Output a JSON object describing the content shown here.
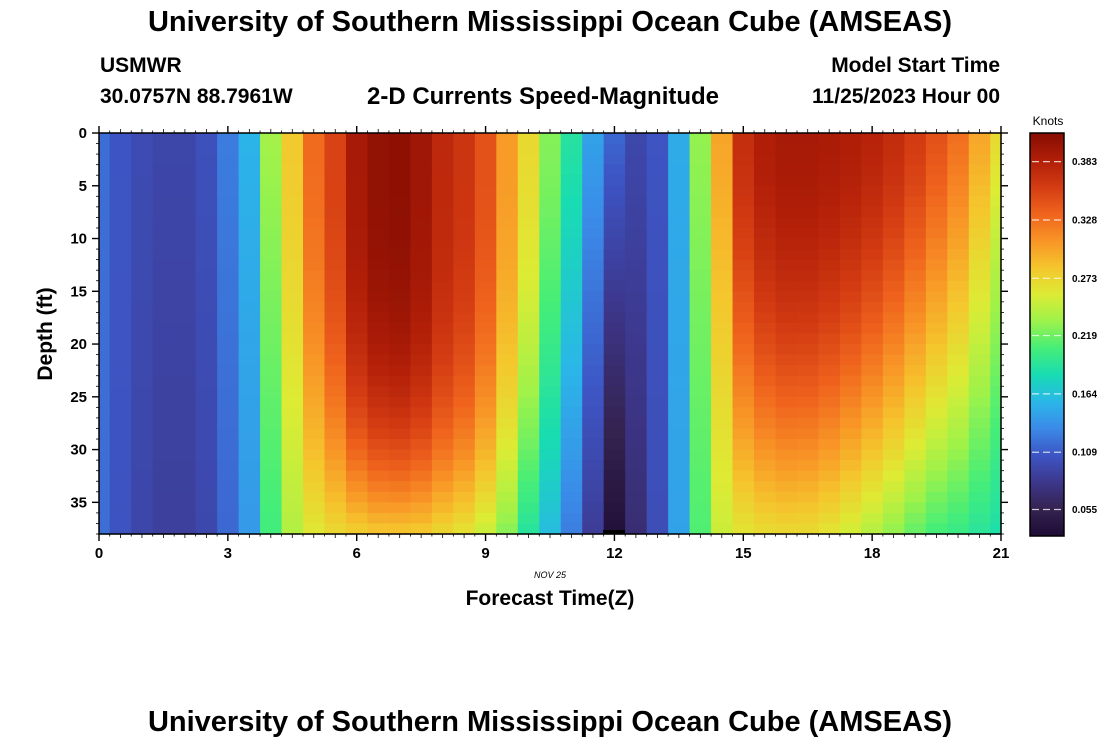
{
  "header": {
    "title": "University of Southern Mississippi Ocean Cube (AMSEAS)",
    "station": "USMWR",
    "coords": "30.0757N  88.7961W",
    "start_label": "Model Start Time",
    "start_value": "11/25/2023 Hour 00"
  },
  "footer": {
    "title": "University of Southern Mississippi Ocean Cube (AMSEAS)"
  },
  "chart_data": {
    "type": "heatmap",
    "title": "2-D Currents Speed-Magnitude",
    "xlabel": "Forecast Time(Z)",
    "ylabel": "Depth (ft)",
    "date_label": "NOV 25",
    "xlim": [
      0,
      21
    ],
    "ylim": [
      38,
      0
    ],
    "x_ticks": [
      0,
      3,
      6,
      9,
      12,
      15,
      18,
      21
    ],
    "y_ticks": [
      0,
      5,
      10,
      15,
      20,
      25,
      30,
      35
    ],
    "colorbar": {
      "label": "Knots",
      "range": [
        0.03,
        0.41
      ],
      "ticks": [
        "0.055",
        "0.109",
        "0.164",
        "0.219",
        "0.273",
        "0.328",
        "0.383"
      ],
      "stops": [
        "#1e0c36",
        "#34224f",
        "#3d378c",
        "#3d55c4",
        "#3b8ae8",
        "#2ab7e8",
        "#18dcb2",
        "#46ee78",
        "#9ef24a",
        "#ddeb34",
        "#f5c52d",
        "#f89426",
        "#ef631d",
        "#d33b12",
        "#b01e08",
        "#860d02"
      ]
    },
    "columns": {
      "hours": [
        0,
        0.5,
        1,
        1.5,
        2,
        2.5,
        3,
        3.5,
        4,
        4.5,
        5,
        5.5,
        6,
        6.5,
        7,
        7.5,
        8,
        8.5,
        9,
        9.5,
        10,
        10.5,
        11,
        11.5,
        12,
        12.5,
        13,
        13.5,
        14,
        14.5,
        15,
        15.5,
        16,
        16.5,
        17,
        17.5,
        18,
        18.5,
        19,
        19.5,
        20,
        20.5,
        21
      ],
      "top_values": [
        0.118,
        0.106,
        0.098,
        0.094,
        0.094,
        0.102,
        0.125,
        0.155,
        0.235,
        0.28,
        0.33,
        0.355,
        0.39,
        0.403,
        0.405,
        0.395,
        0.375,
        0.365,
        0.345,
        0.305,
        0.27,
        0.225,
        0.19,
        0.145,
        0.115,
        0.095,
        0.105,
        0.15,
        0.23,
        0.3,
        0.37,
        0.385,
        0.39,
        0.39,
        0.388,
        0.385,
        0.38,
        0.372,
        0.36,
        0.345,
        0.328,
        0.3,
        0.27
      ],
      "bottom_values": [
        0.118,
        0.104,
        0.094,
        0.088,
        0.088,
        0.095,
        0.115,
        0.14,
        0.205,
        0.24,
        0.26,
        0.27,
        0.275,
        0.28,
        0.28,
        0.278,
        0.27,
        0.262,
        0.248,
        0.225,
        0.19,
        0.16,
        0.125,
        0.085,
        0.035,
        0.07,
        0.1,
        0.145,
        0.21,
        0.25,
        0.262,
        0.268,
        0.27,
        0.268,
        0.262,
        0.252,
        0.24,
        0.228,
        0.215,
        0.205,
        0.2,
        0.192,
        0.185
      ],
      "profile_exponent": [
        1,
        1,
        1,
        1,
        1,
        1,
        1,
        1,
        1,
        1.5,
        2,
        2.5,
        3,
        3.2,
        3.3,
        3.3,
        3.2,
        3,
        2.6,
        2.2,
        1.8,
        1.5,
        1.2,
        1,
        1,
        1,
        1,
        1,
        1,
        1.2,
        1.6,
        1.8,
        1.9,
        1.9,
        1.8,
        1.7,
        1.6,
        1.5,
        1.4,
        1.3,
        1.2,
        1.1,
        1
      ]
    }
  }
}
